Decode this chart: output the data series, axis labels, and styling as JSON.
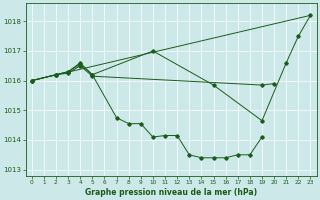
{
  "title": "Graphe pression niveau de la mer (hPa)",
  "bg_color": "#cce8e8",
  "line_color": "#1a5c1a",
  "ylim": [
    1012.8,
    1018.6
  ],
  "xlim": [
    -0.5,
    23.5
  ],
  "yticks": [
    1013,
    1014,
    1015,
    1016,
    1017,
    1018
  ],
  "xticks": [
    0,
    1,
    2,
    3,
    4,
    5,
    6,
    7,
    8,
    9,
    10,
    11,
    12,
    13,
    14,
    15,
    16,
    17,
    18,
    19,
    20,
    21,
    22,
    23
  ],
  "line1_x": [
    0,
    23
  ],
  "line1_y": [
    1016.0,
    1018.2
  ],
  "line2_x": [
    0,
    2,
    3,
    4,
    5,
    10,
    15,
    19,
    21,
    22,
    23
  ],
  "line2_y": [
    1016.0,
    1016.2,
    1016.3,
    1016.55,
    1016.2,
    1017.0,
    1015.85,
    1014.65,
    1016.6,
    1017.5,
    1018.2
  ],
  "line3_x": [
    0,
    2,
    3,
    4,
    5,
    19,
    20
  ],
  "line3_y": [
    1016.0,
    1016.2,
    1016.25,
    1016.5,
    1016.15,
    1015.85,
    1015.9
  ],
  "line4_x": [
    0,
    2,
    3,
    4,
    5,
    7,
    8,
    9,
    10,
    11,
    12,
    13,
    14,
    15,
    16,
    17,
    18,
    19
  ],
  "line4_y": [
    1016.0,
    1016.2,
    1016.3,
    1016.6,
    1016.2,
    1014.75,
    1014.55,
    1014.55,
    1014.1,
    1014.15,
    1014.15,
    1013.5,
    1013.4,
    1013.4,
    1013.4,
    1013.5,
    1013.5,
    1014.1
  ]
}
